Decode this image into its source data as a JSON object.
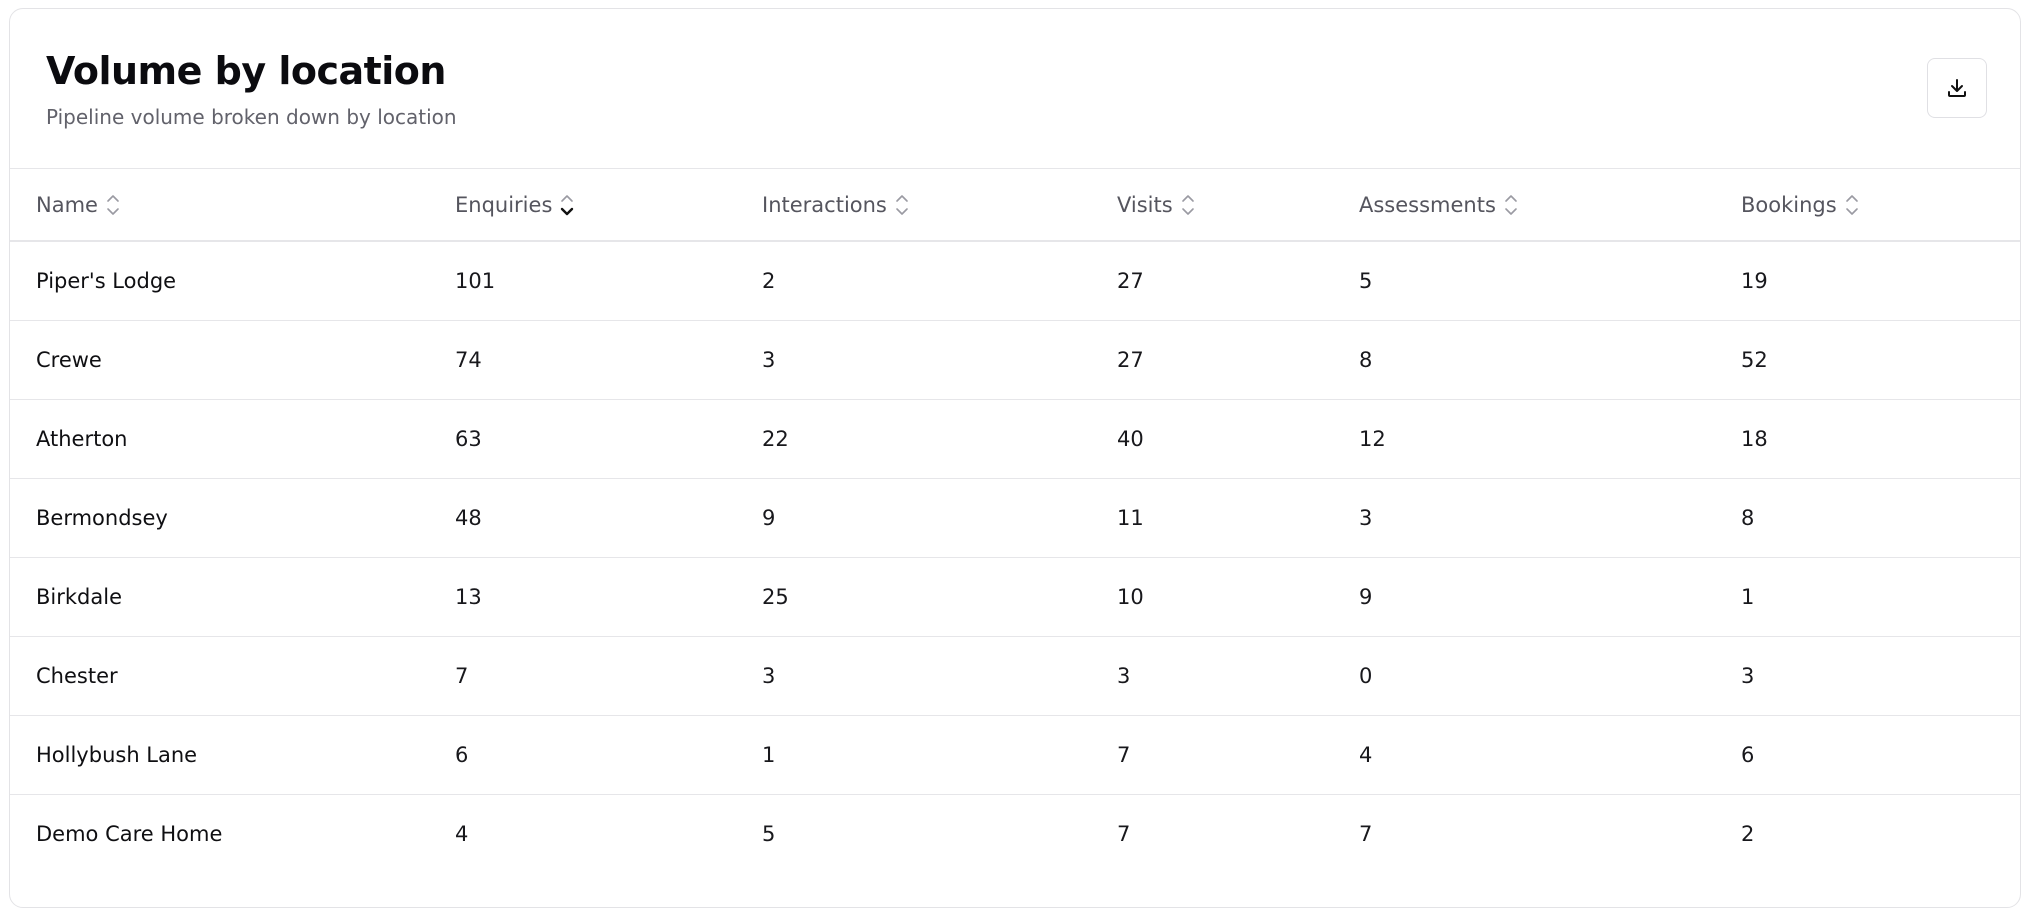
{
  "header": {
    "title": "Volume by location",
    "subtitle": "Pipeline volume broken down by location"
  },
  "table": {
    "columns": [
      "Name",
      "Enquiries",
      "Interactions",
      "Visits",
      "Assessments",
      "Bookings"
    ],
    "sorted_column": 1,
    "rows": [
      [
        "Piper's Lodge",
        101,
        2,
        27,
        5,
        19
      ],
      [
        "Crewe",
        74,
        3,
        27,
        8,
        52
      ],
      [
        "Atherton",
        63,
        22,
        40,
        12,
        18
      ],
      [
        "Bermondsey",
        48,
        9,
        11,
        3,
        8
      ],
      [
        "Birkdale",
        13,
        25,
        10,
        9,
        1
      ],
      [
        "Chester",
        7,
        3,
        3,
        0,
        3
      ],
      [
        "Hollybush Lane",
        6,
        1,
        7,
        4,
        6
      ],
      [
        "Demo Care Home",
        4,
        5,
        7,
        7,
        2
      ]
    ]
  }
}
